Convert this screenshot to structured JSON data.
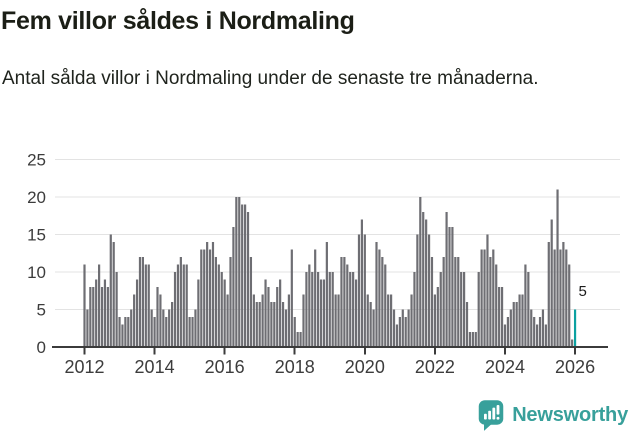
{
  "title": "Fem villor såldes i Nordmaling",
  "subtitle": "Antal sålda villor i Nordmaling under de senaste tre månaderna.",
  "chart_data": {
    "type": "bar",
    "title": "Fem villor såldes i Nordmaling",
    "subtitle": "Antal sålda villor i Nordmaling under de senaste tre månaderna.",
    "frequency": "monthly",
    "start_year": 2012,
    "values": [
      11,
      5,
      8,
      8,
      9,
      11,
      8,
      9,
      8,
      15,
      14,
      10,
      4,
      3,
      4,
      4,
      5,
      7,
      9,
      12,
      12,
      11,
      11,
      5,
      4,
      8,
      7,
      5,
      4,
      5,
      6,
      10,
      11,
      12,
      11,
      11,
      4,
      4,
      5,
      9,
      13,
      13,
      14,
      13,
      14,
      12,
      11,
      10,
      9,
      7,
      12,
      16,
      20,
      20,
      19,
      19,
      18,
      12,
      7,
      6,
      6,
      7,
      9,
      8,
      6,
      6,
      8,
      9,
      6,
      5,
      7,
      13,
      4,
      2,
      2,
      7,
      10,
      11,
      10,
      13,
      10,
      9,
      9,
      14,
      10,
      10,
      7,
      7,
      12,
      12,
      11,
      10,
      10,
      9,
      15,
      17,
      15,
      7,
      6,
      5,
      14,
      13,
      12,
      11,
      7,
      7,
      5,
      3,
      4,
      5,
      4,
      5,
      7,
      10,
      15,
      20,
      18,
      17,
      15,
      12,
      7,
      8,
      10,
      12,
      18,
      16,
      16,
      12,
      12,
      10,
      10,
      6,
      2,
      2,
      2,
      10,
      13,
      13,
      15,
      12,
      13,
      11,
      8,
      8,
      3,
      4,
      5,
      6,
      6,
      7,
      7,
      11,
      10,
      5,
      4,
      3,
      4,
      5,
      3,
      14,
      17,
      13,
      21,
      13,
      14,
      13,
      11,
      1,
      5
    ],
    "highlight_last": {
      "label": "5",
      "value": 5
    },
    "y_axis": {
      "tick_labels": [
        "0",
        "5",
        "10",
        "15",
        "20",
        "25"
      ],
      "tick_values": [
        0,
        5,
        10,
        15,
        20,
        25
      ],
      "range": [
        0,
        25
      ]
    },
    "x_axis": {
      "tick_labels": [
        "2012",
        "2014",
        "2016",
        "2018",
        "2020",
        "2022",
        "2024",
        "2026"
      ],
      "months_per_tick": 24
    },
    "grid": "horizontal",
    "legend": "none"
  },
  "colors": {
    "bar": "#6e6e73",
    "highlight_bar": "#0ba1a1",
    "axis_line": "#3b3b3b",
    "gridline": "#e3e3e3",
    "axis_label": "#3c3c3c",
    "title": "#1b1e16",
    "subtitle": "#20241e",
    "value_label": "#1c1c1c",
    "logo": "#38a09b"
  },
  "logo": {
    "text": "Newsworthy",
    "icon": "newsworthy-speech-bubble-bar-chart-icon"
  }
}
